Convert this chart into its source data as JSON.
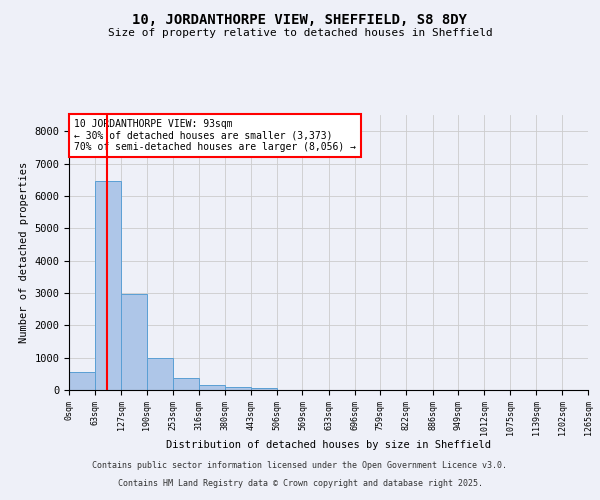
{
  "title": "10, JORDANTHORPE VIEW, SHEFFIELD, S8 8DY",
  "subtitle": "Size of property relative to detached houses in Sheffield",
  "xlabel": "Distribution of detached houses by size in Sheffield",
  "ylabel": "Number of detached properties",
  "bar_color": "#aec6e8",
  "bar_edge_color": "#5a9fd4",
  "vline_color": "red",
  "vline_x": 93,
  "annotation_text": "10 JORDANTHORPE VIEW: 93sqm\n← 30% of detached houses are smaller (3,373)\n70% of semi-detached houses are larger (8,056) →",
  "annotation_box_color": "red",
  "annotation_box_facecolor": "white",
  "bin_edges": [
    0,
    63,
    127,
    190,
    253,
    316,
    380,
    443,
    506,
    569,
    633,
    696,
    759,
    822,
    886,
    949,
    1012,
    1075,
    1139,
    1202,
    1265
  ],
  "bin_values": [
    560,
    6450,
    2980,
    980,
    360,
    155,
    100,
    55,
    0,
    0,
    0,
    0,
    0,
    0,
    0,
    0,
    0,
    0,
    0,
    0
  ],
  "ylim": [
    0,
    8500
  ],
  "yticks": [
    0,
    1000,
    2000,
    3000,
    4000,
    5000,
    6000,
    7000,
    8000
  ],
  "grid_color": "#cccccc",
  "background_color": "#eef0f8",
  "footer_line1": "Contains HM Land Registry data © Crown copyright and database right 2025.",
  "footer_line2": "Contains public sector information licensed under the Open Government Licence v3.0."
}
